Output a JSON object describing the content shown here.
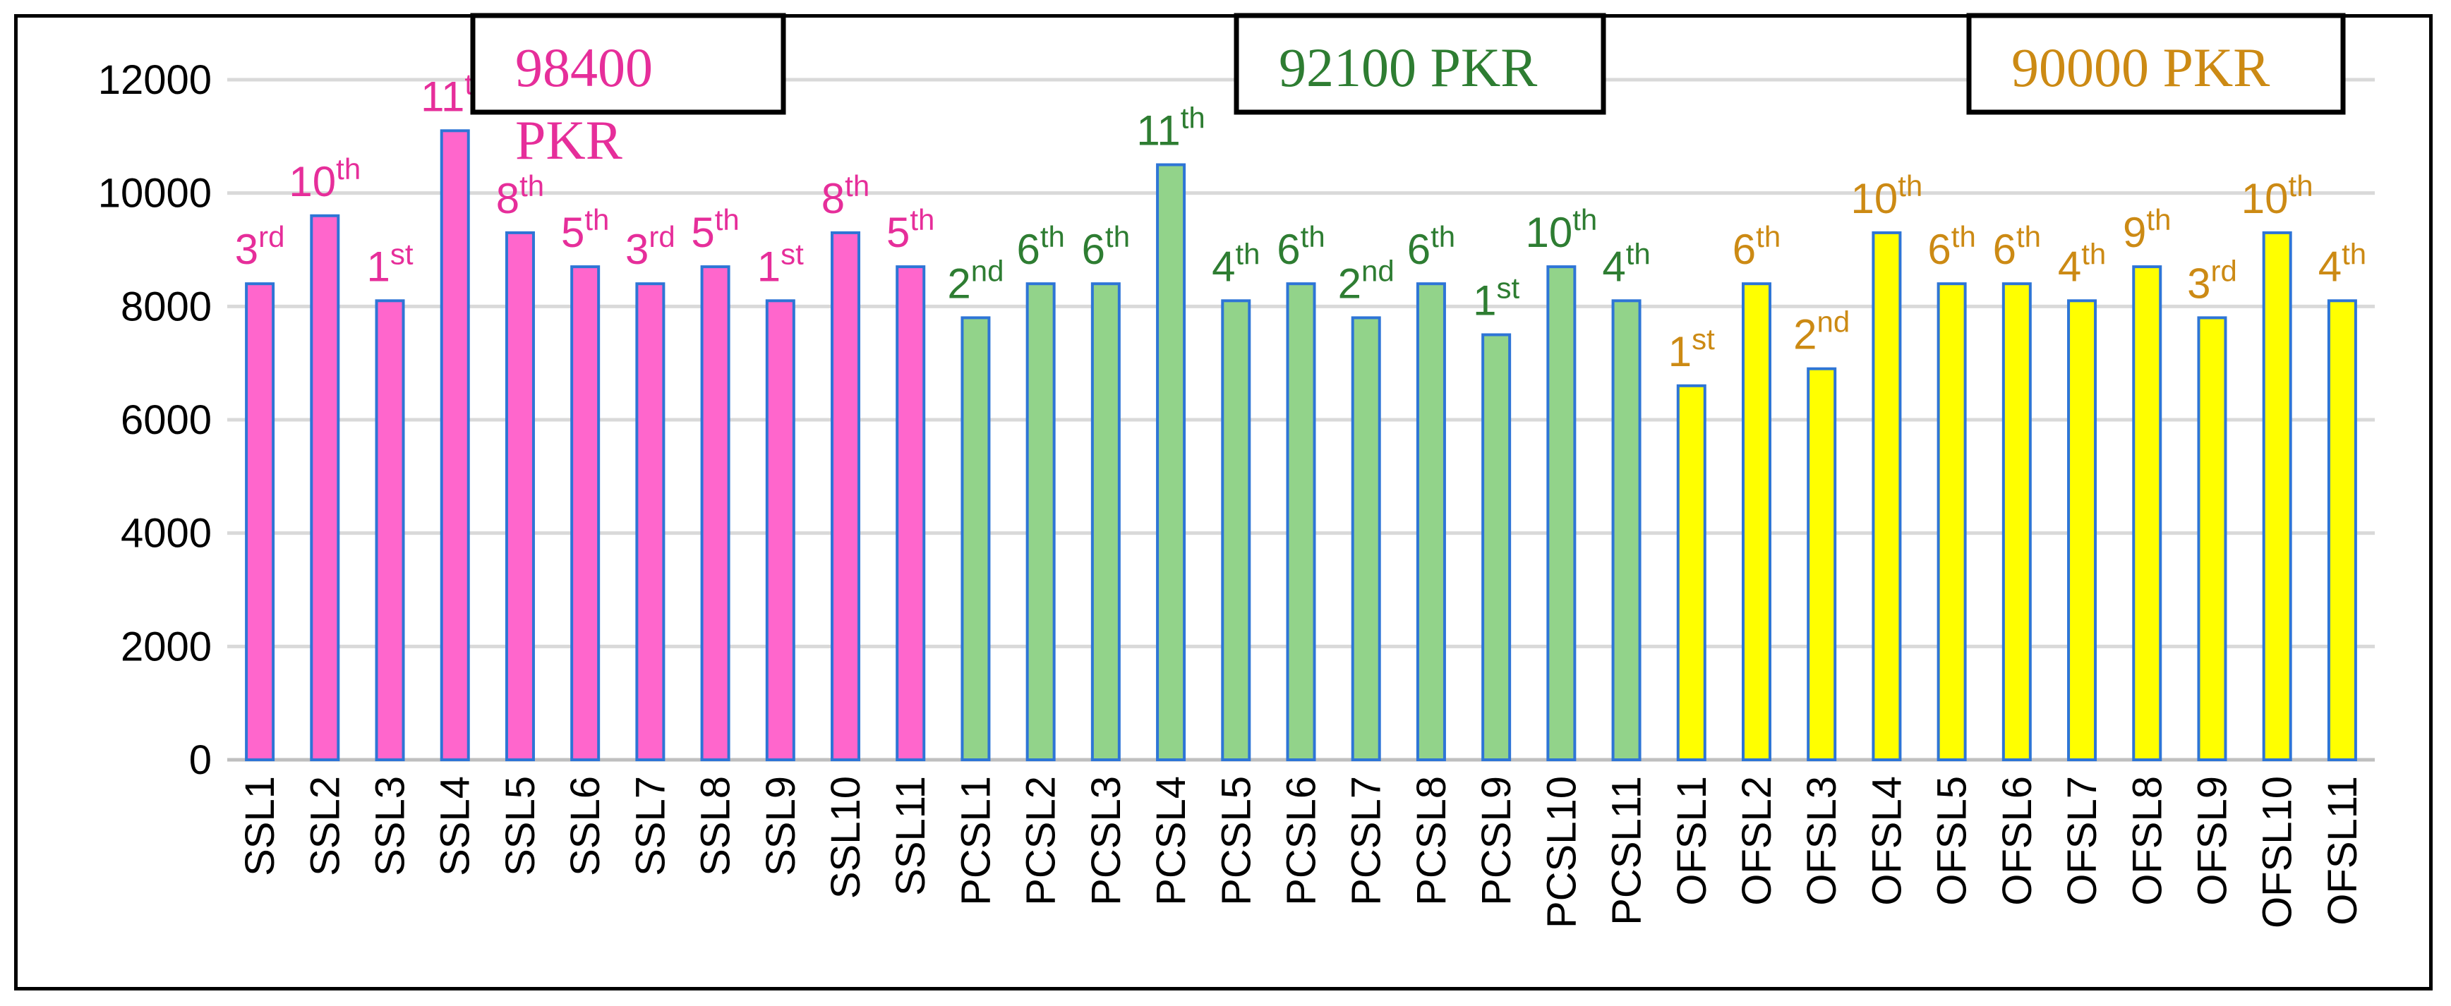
{
  "chart_data": {
    "type": "bar",
    "title": "",
    "xlabel": "",
    "ylabel": "",
    "ylim": [
      0,
      12000
    ],
    "yticks": [
      0,
      2000,
      4000,
      6000,
      8000,
      10000,
      12000
    ],
    "grid": true,
    "categories": [
      "SSL1",
      "SSL2",
      "SSL3",
      "SSL4",
      "SSL5",
      "SSL6",
      "SSL7",
      "SSL8",
      "SSL9",
      "SSL10",
      "SSL11",
      "PCSL1",
      "PCSL2",
      "PCSL3",
      "PCSL4",
      "PCSL5",
      "PCSL6",
      "PCSL7",
      "PCSL8",
      "PCSL9",
      "PCSL10",
      "PCSL11",
      "OFSL1",
      "OFSL2",
      "OFSL3",
      "OFSL4",
      "OFSL5",
      "OFSL6",
      "OFSL7",
      "OFSL8",
      "OFSL9",
      "OFSL10",
      "OFSL11"
    ],
    "values": [
      8400,
      9600,
      8100,
      11100,
      9300,
      8700,
      8400,
      8700,
      8100,
      9300,
      8700,
      7800,
      8400,
      8400,
      10500,
      8100,
      8400,
      7800,
      8400,
      7500,
      8700,
      8100,
      6600,
      8400,
      6900,
      9300,
      8400,
      8400,
      8100,
      8700,
      7800,
      9300,
      8100
    ],
    "ranks": [
      [
        "3",
        "rd"
      ],
      [
        "10",
        "th"
      ],
      [
        "1",
        "st"
      ],
      [
        "11",
        "th"
      ],
      [
        "8",
        "th"
      ],
      [
        "5",
        "th"
      ],
      [
        "3",
        "rd"
      ],
      [
        "5",
        "th"
      ],
      [
        "1",
        "st"
      ],
      [
        "8",
        "th"
      ],
      [
        "5",
        "th"
      ],
      [
        "2",
        "nd"
      ],
      [
        "6",
        "th"
      ],
      [
        "6",
        "th"
      ],
      [
        "11",
        "th"
      ],
      [
        "4",
        "th"
      ],
      [
        "6",
        "th"
      ],
      [
        "2",
        "nd"
      ],
      [
        "6",
        "th"
      ],
      [
        "1",
        "st"
      ],
      [
        "10",
        "th"
      ],
      [
        "4",
        "th"
      ],
      [
        "1",
        "st"
      ],
      [
        "6",
        "th"
      ],
      [
        "2",
        "nd"
      ],
      [
        "10",
        "th"
      ],
      [
        "6",
        "th"
      ],
      [
        "6",
        "th"
      ],
      [
        "4",
        "th"
      ],
      [
        "9",
        "th"
      ],
      [
        "3",
        "rd"
      ],
      [
        "10",
        "th"
      ],
      [
        "4",
        "th"
      ]
    ],
    "groups": [
      {
        "start": 0,
        "count": 11,
        "fill": "#ff66cc",
        "text_color": "#e62e9a",
        "label": "98400",
        "label2": "PKR"
      },
      {
        "start": 11,
        "count": 11,
        "fill": "#92d38a",
        "text_color": "#2e7d32",
        "label": "92100 PKR"
      },
      {
        "start": 22,
        "count": 11,
        "fill": "#ffff00",
        "text_color": "#cc8a14",
        "label": "90000 PKR"
      }
    ],
    "bar_edge_color": "#2e75d6",
    "grid_color": "#d9d9d9",
    "axis_color": "#bfbfbf"
  }
}
